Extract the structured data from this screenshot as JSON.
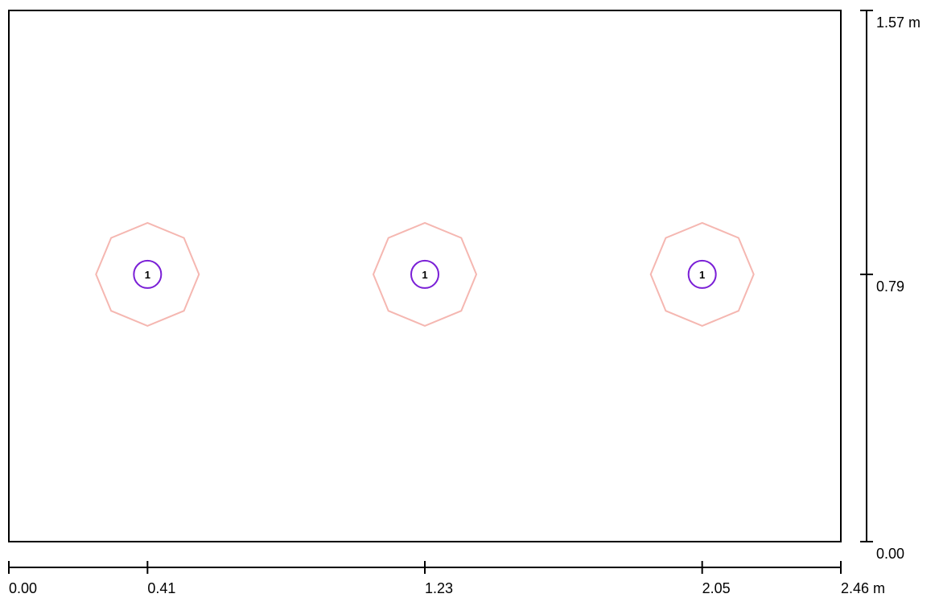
{
  "x_dimension": {
    "ticks": [
      {
        "value": 0,
        "label": "0.00"
      },
      {
        "value": 0.41,
        "label": "0.41"
      },
      {
        "value": 1.23,
        "label": "1.23"
      },
      {
        "value": 2.05,
        "label": "2.05"
      },
      {
        "value": 2.46,
        "label": "2.46 m"
      }
    ]
  },
  "y_dimension": {
    "ticks": [
      {
        "value": 0,
        "label": "0.00"
      },
      {
        "value": 0.79,
        "label": "0.79"
      },
      {
        "value": 1.57,
        "label": "1.57 m"
      }
    ]
  },
  "luminaires": [
    {
      "label": "1"
    },
    {
      "label": "1"
    },
    {
      "label": "1"
    }
  ]
}
